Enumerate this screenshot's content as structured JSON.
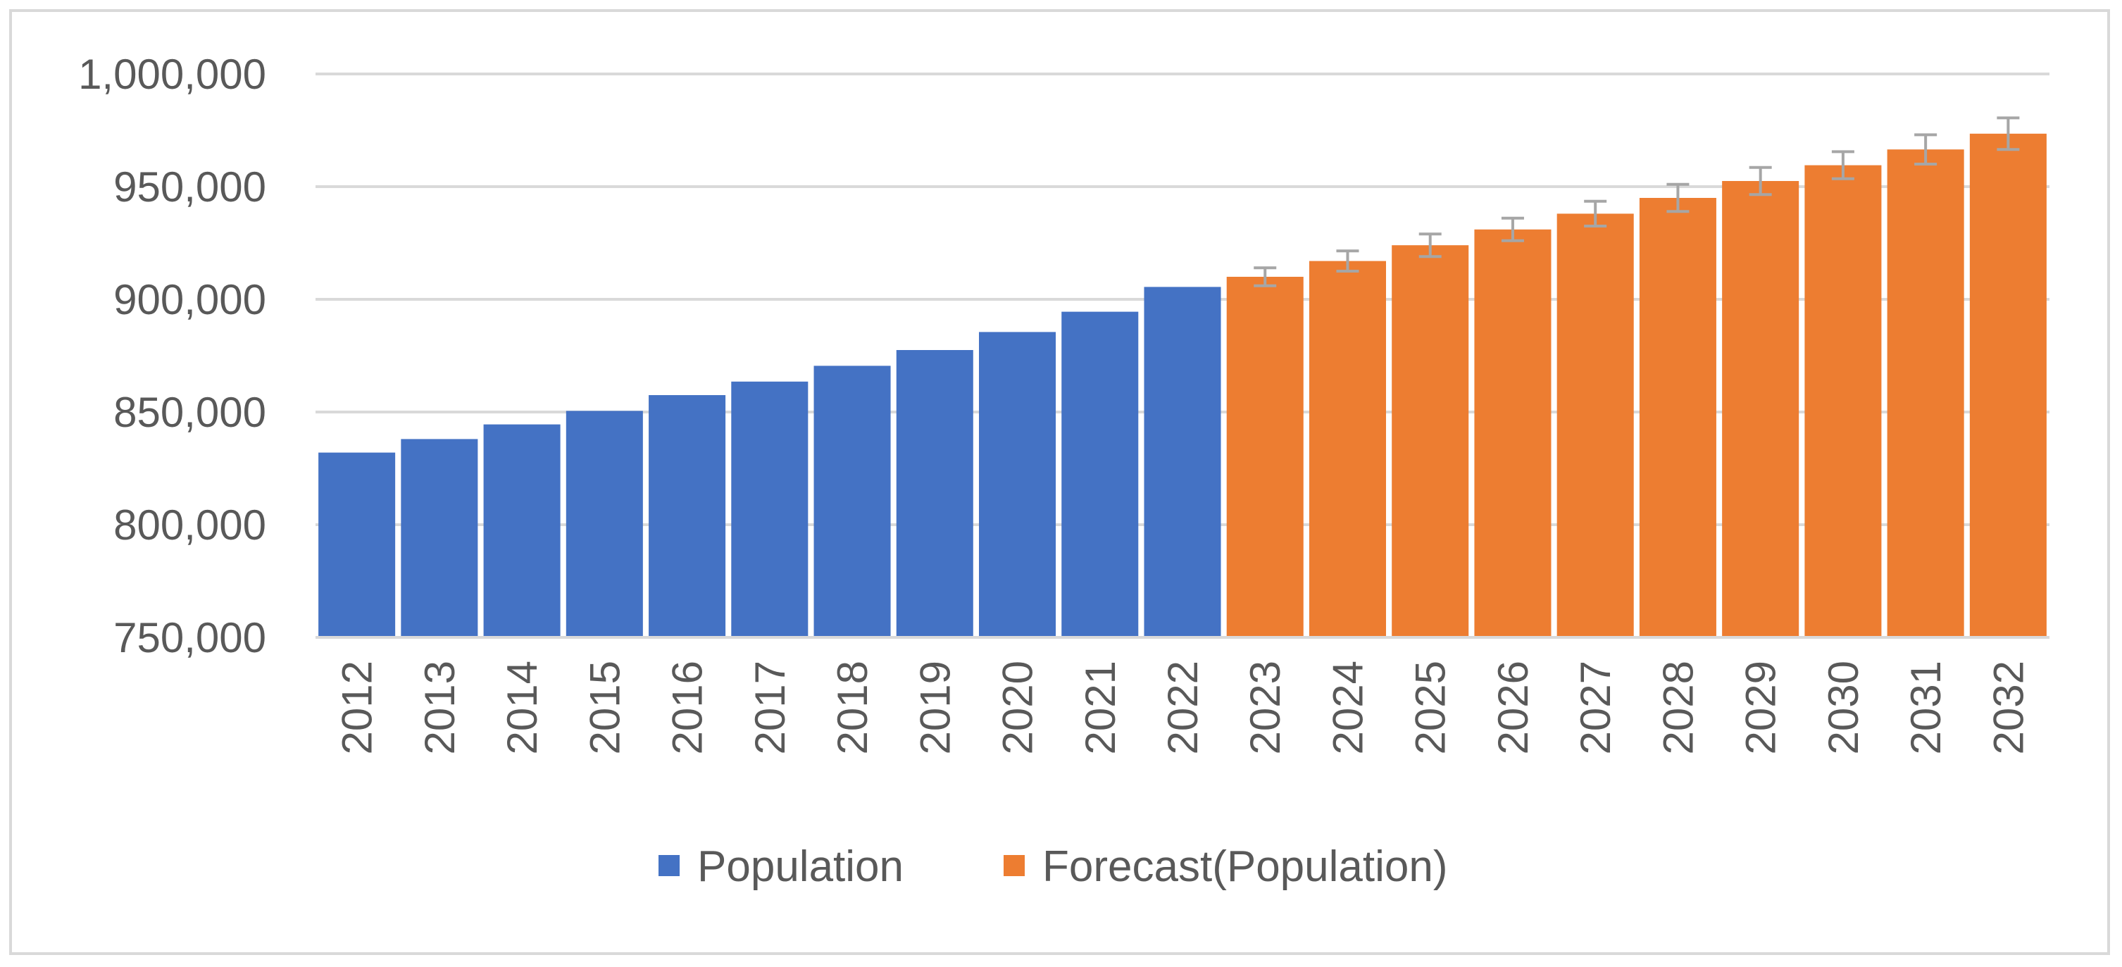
{
  "chart_data": {
    "type": "bar",
    "title": "",
    "xlabel": "",
    "ylabel": "",
    "ylim": [
      750000,
      1000000
    ],
    "yticks": [
      750000,
      800000,
      850000,
      900000,
      950000,
      1000000
    ],
    "ytick_labels": [
      "750,000",
      "800,000",
      "850,000",
      "900,000",
      "950,000",
      "1,000,000"
    ],
    "grid": true,
    "legend_position": "bottom",
    "categories": [
      "2012",
      "2013",
      "2014",
      "2015",
      "2016",
      "2017",
      "2018",
      "2019",
      "2020",
      "2021",
      "2022",
      "2023",
      "2024",
      "2025",
      "2026",
      "2027",
      "2028",
      "2029",
      "2030",
      "2031",
      "2032"
    ],
    "series": [
      {
        "name": "Population",
        "color": "#4472c4",
        "values": [
          832000,
          838000,
          844500,
          850500,
          857500,
          863500,
          870500,
          877500,
          885500,
          894500,
          905500,
          null,
          null,
          null,
          null,
          null,
          null,
          null,
          null,
          null,
          null
        ]
      },
      {
        "name": "Forecast(Population)",
        "color": "#ed7d31",
        "values": [
          null,
          null,
          null,
          null,
          null,
          null,
          null,
          null,
          null,
          null,
          null,
          910000,
          917000,
          924000,
          931000,
          938000,
          945000,
          952500,
          959500,
          966500,
          973500
        ],
        "error_bars": [
          null,
          null,
          null,
          null,
          null,
          null,
          null,
          null,
          null,
          null,
          null,
          4000,
          4500,
          5000,
          5000,
          5500,
          6000,
          6000,
          6000,
          6500,
          7000
        ],
        "error_bar_color": "#a6a6a6"
      }
    ]
  },
  "legend": {
    "items": [
      {
        "label": "Population",
        "color": "#4472c4"
      },
      {
        "label": "Forecast(Population)",
        "color": "#ed7d31"
      }
    ]
  }
}
